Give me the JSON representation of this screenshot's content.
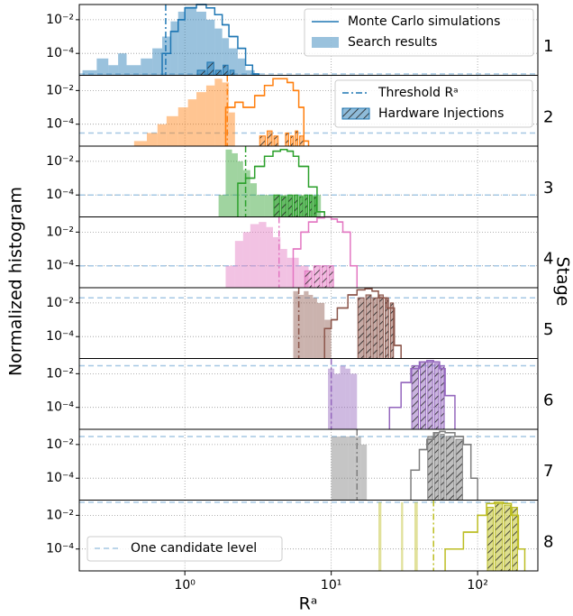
{
  "chart_data": {
    "type": "histogram",
    "xlabel": "Rᵃ",
    "ylabel": "Normalized histogram",
    "stage_label": "Stage",
    "xscale": "log",
    "yscale": "log",
    "grid": true,
    "xlim": [
      0.19,
      258
    ],
    "xticks": [
      {
        "value": 1,
        "label": "10⁰"
      },
      {
        "value": 10,
        "label": "10¹"
      },
      {
        "value": 100,
        "label": "10²"
      }
    ],
    "ylim": [
      5e-06,
      0.08
    ],
    "yticks": [
      {
        "value": 0.01,
        "label": "10⁻²"
      },
      {
        "value": 0.0001,
        "label": "10⁻⁴"
      }
    ],
    "legend_color": "#1f77b4",
    "candidate_color": "#a6c8e4",
    "legend": [
      "Monte Carlo simulations",
      "Search results",
      "Threshold Rᵃ",
      "Hardware Injections",
      "One candidate level"
    ],
    "panels": [
      {
        "stage": "1",
        "color": "#1f77b4",
        "threshold": 0.74,
        "candidate_level": 6e-06,
        "search": {
          "bins": [
            0.2,
            0.25,
            0.3,
            0.35,
            0.4,
            0.5,
            0.6,
            0.7,
            0.8,
            0.9,
            1.0,
            1.2,
            1.4,
            1.6,
            1.8,
            2.0,
            2.3,
            2.6,
            3.0
          ],
          "values": [
            1e-05,
            5e-05,
            2e-05,
            0.0001,
            2e-05,
            5e-05,
            0.0002,
            0.001,
            0.008,
            0.03,
            0.06,
            0.03,
            0.01,
            0.003,
            0.0008,
            0.0002,
            5e-05,
            1e-05
          ]
        },
        "mc": {
          "bins": [
            0.7,
            0.8,
            0.9,
            1.0,
            1.2,
            1.4,
            1.6,
            1.8,
            2.0,
            2.3,
            2.6,
            2.9,
            3.2
          ],
          "values": [
            0.0001,
            0.002,
            0.01,
            0.05,
            0.08,
            0.05,
            0.02,
            0.005,
            0.001,
            0.0002,
            2e-05,
            6e-06
          ]
        },
        "injections": {
          "bins": [
            1.2,
            1.4,
            1.6,
            1.8,
            2.0,
            2.2
          ],
          "values": [
            1e-05,
            3e-05,
            1e-05,
            2e-05,
            1e-05
          ]
        }
      },
      {
        "stage": "2",
        "color": "#ff7f0e",
        "threshold": 1.95,
        "candidate_level": 3e-05,
        "search": {
          "bins": [
            0.45,
            0.55,
            0.65,
            0.75,
            0.9,
            1.05,
            1.2,
            1.4,
            1.6,
            1.8,
            2.0,
            2.2
          ],
          "values": [
            1e-05,
            3e-05,
            0.0001,
            0.0003,
            0.001,
            0.003,
            0.008,
            0.02,
            0.05,
            0.03,
            0.0005
          ]
        },
        "mc": {
          "bins": [
            1.9,
            2.2,
            2.5,
            3.0,
            3.5,
            4.0,
            4.5,
            5.0,
            5.5,
            6.0,
            6.5,
            7.0
          ],
          "values": [
            0.001,
            0.002,
            0.001,
            0.005,
            0.02,
            0.05,
            0.05,
            0.03,
            0.01,
            0.001,
            1e-05
          ]
        },
        "injections": {
          "bins": [
            3.2,
            3.6,
            4.0,
            4.4,
            4.8,
            5.2,
            5.6,
            6.0,
            6.6
          ],
          "values": [
            2e-05,
            4e-05,
            2e-05,
            null,
            3e-05,
            2e-05,
            4e-05,
            2e-05
          ]
        }
      },
      {
        "stage": "3",
        "color": "#2ca02c",
        "threshold": 2.6,
        "candidate_level": 0.0001,
        "search": {
          "bins": [
            1.7,
            1.9,
            2.1,
            2.3,
            2.5,
            2.8,
            3.1,
            3.5,
            4.0,
            5,
            6,
            7,
            8.5
          ],
          "values": [
            0.0001,
            0.05,
            0.03,
            0.01,
            0.003,
            0.0005,
            0.0001,
            0.0001,
            0.0001,
            0.0001,
            0.0001,
            0.0001
          ]
        },
        "mc": {
          "bins": [
            2.3,
            2.6,
            3.0,
            3.5,
            4.0,
            4.5,
            5.0,
            5.5,
            6.0,
            7.0,
            8.0,
            9.0
          ],
          "values": [
            0.0005,
            0.001,
            0.005,
            0.02,
            0.04,
            0.05,
            0.04,
            0.02,
            0.005,
            0.0003,
            1e-05
          ]
        },
        "injections": {
          "bins": [
            4.0,
            4.5,
            5.0,
            5.5,
            6.0,
            6.5,
            7.0,
            7.5,
            8.0
          ],
          "values": [
            0.0001,
            8e-05,
            0.0001,
            0.0001,
            8e-05,
            0.0001,
            0.0001,
            8e-05
          ]
        }
      },
      {
        "stage": "4",
        "color": "#e377c2",
        "threshold": 4.4,
        "candidate_level": 0.0001,
        "search": {
          "bins": [
            1.9,
            2.2,
            2.5,
            2.8,
            3.2,
            3.6,
            4.0,
            4.5,
            5.0,
            6.0,
            7.0
          ],
          "values": [
            0.0001,
            0.003,
            0.01,
            0.03,
            0.04,
            0.02,
            0.005,
            0.001,
            0.0003,
            0.0001
          ]
        },
        "mc": {
          "bins": [
            5.5,
            6.2,
            7.0,
            8.0,
            9.0,
            10,
            11,
            12,
            13.5,
            15
          ],
          "values": [
            0.001,
            0.01,
            0.04,
            0.07,
            0.08,
            0.06,
            0.04,
            0.01,
            0.0001
          ]
        },
        "injections": {
          "bins": [
            6.5,
            7.5,
            8.5,
            9.5,
            10.5
          ],
          "values": [
            5e-05,
            0.0001,
            0.0001,
            0.0001
          ]
        }
      },
      {
        "stage": "5",
        "color": "#8c564b",
        "threshold": 6,
        "candidate_level": 0.02,
        "search": {
          "bins": [
            5.5,
            6.0,
            6.5,
            7.0,
            7.5,
            8.0,
            9.0,
            10.0
          ],
          "values": [
            0.05,
            0.03,
            0.05,
            0.03,
            0.02,
            0.01,
            0.001
          ]
        },
        "mc": {
          "bins": [
            9,
            10,
            11,
            13,
            15,
            17,
            19,
            21,
            24,
            27,
            30
          ],
          "values": [
            0.0003,
            0.001,
            0.005,
            0.03,
            0.06,
            0.07,
            0.05,
            0.02,
            0.005,
            3e-05
          ]
        },
        "injections": {
          "bins": [
            15,
            17,
            19,
            21,
            23,
            25,
            27
          ],
          "values": [
            0.02,
            0.03,
            0.02,
            0.03,
            0.02,
            0.01
          ]
        }
      },
      {
        "stage": "6",
        "color": "#9467bd",
        "threshold": 10,
        "candidate_level": 0.03,
        "search": {
          "bins": [
            9.5,
            10.5,
            11.5,
            12.5,
            13.5,
            15
          ],
          "values": [
            0.02,
            0.01,
            0.03,
            0.02,
            0.01
          ]
        },
        "mc": {
          "bins": [
            25,
            30,
            35,
            40,
            45,
            50,
            55,
            60,
            70
          ],
          "values": [
            0.0001,
            0.003,
            0.02,
            0.05,
            0.06,
            0.05,
            0.02,
            0.0005
          ]
        },
        "injections": {
          "bins": [
            35,
            40,
            45,
            50,
            55,
            60
          ],
          "values": [
            0.03,
            0.05,
            0.05,
            0.04,
            0.03
          ]
        }
      },
      {
        "stage": "7",
        "color": "#7f7f7f",
        "threshold": 15,
        "candidate_level": 0.03,
        "search": {
          "bins": [
            10,
            11.5,
            13,
            14.5,
            16,
            17.5
          ],
          "values": [
            0.03,
            0.03,
            0.03,
            0.03,
            0.01
          ]
        },
        "mc": {
          "bins": [
            35,
            40,
            45,
            50,
            55,
            60,
            70,
            80,
            90,
            100
          ],
          "values": [
            0.0003,
            0.005,
            0.02,
            0.05,
            0.06,
            0.05,
            0.03,
            0.01,
            0.0001
          ]
        },
        "injections": {
          "bins": [
            45,
            50,
            55,
            60,
            70,
            80
          ],
          "values": [
            0.03,
            0.05,
            0.04,
            0.03,
            0.02
          ]
        }
      },
      {
        "stage": "8",
        "color": "#bcbd22",
        "threshold": 50,
        "candidate_level": 0.06,
        "search": {
          "bins": [
            21,
            22,
            30,
            31,
            37,
            39
          ],
          "values": [
            0.06,
            null,
            0.06,
            null,
            0.06
          ]
        },
        "mc": {
          "bins": [
            60,
            80,
            100,
            115,
            130,
            150,
            170,
            190,
            210
          ],
          "values": [
            0.0001,
            0.001,
            0.01,
            0.05,
            0.06,
            0.05,
            0.01,
            0.0001
          ]
        },
        "injections": {
          "bins": [
            115,
            130,
            150,
            170,
            190
          ],
          "values": [
            0.03,
            0.05,
            0.04,
            0.03
          ]
        }
      }
    ]
  }
}
